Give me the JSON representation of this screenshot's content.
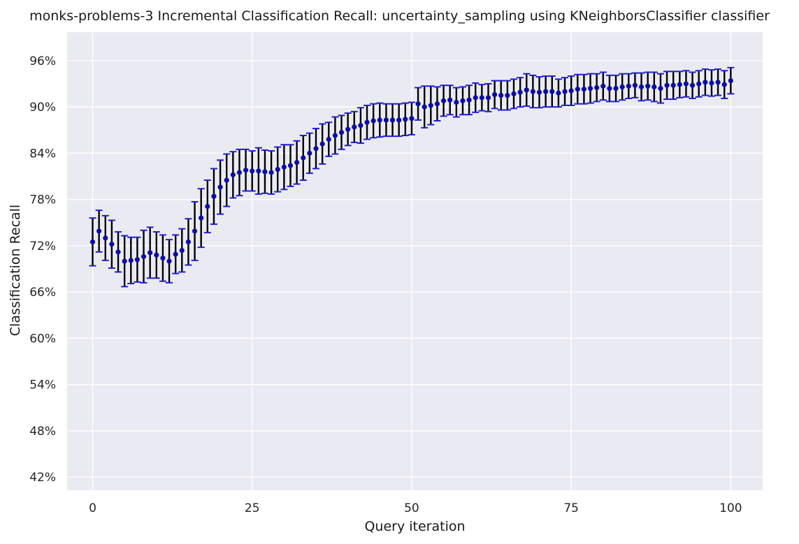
{
  "chart_data": {
    "type": "scatter",
    "title": "monks-problems-3 Incremental Classification Recall: uncertainty_sampling using KNeighborsClassifier classifier",
    "xlabel": "Query iteration",
    "ylabel": "Classification Recall",
    "xlim": [
      -4,
      105
    ],
    "ylim": [
      40.3,
      99.7
    ],
    "xticks": [
      0,
      25,
      50,
      75,
      100
    ],
    "yticks": [
      42,
      48,
      54,
      60,
      66,
      72,
      78,
      84,
      90,
      96
    ],
    "ytick_format": "percent",
    "grid": true,
    "background": "#eaeaf2",
    "grid_color": "#ffffff",
    "point_color": "#0c0ca4",
    "errorbar_color": "#000000",
    "cap_color": "#1f1fcf",
    "series": [
      {
        "x": [
          0,
          1,
          2,
          3,
          4,
          5,
          6,
          7,
          8,
          9,
          10,
          11,
          12,
          13,
          14,
          15,
          16,
          17,
          18,
          19,
          20,
          21,
          22,
          23,
          24,
          25,
          26,
          27,
          28,
          29,
          30,
          31,
          32,
          33,
          34,
          35,
          36,
          37,
          38,
          39,
          40,
          41,
          42,
          43,
          44,
          45,
          46,
          47,
          48,
          49,
          50,
          51,
          52,
          53,
          54,
          55,
          56,
          57,
          58,
          59,
          60,
          61,
          62,
          63,
          64,
          65,
          66,
          67,
          68,
          69,
          70,
          71,
          72,
          73,
          74,
          75,
          76,
          77,
          78,
          79,
          80,
          81,
          82,
          83,
          84,
          85,
          86,
          87,
          88,
          89,
          90,
          91,
          92,
          93,
          94,
          95,
          96,
          97,
          98,
          99,
          100
        ],
        "y": [
          72.5,
          73.9,
          73.0,
          72.2,
          71.2,
          70.0,
          70.1,
          70.2,
          70.6,
          71.1,
          70.8,
          70.4,
          70.0,
          70.9,
          71.4,
          72.5,
          73.9,
          75.6,
          77.1,
          78.4,
          79.6,
          80.5,
          81.2,
          81.5,
          81.8,
          81.7,
          81.7,
          81.6,
          81.5,
          81.9,
          82.2,
          82.4,
          82.8,
          83.4,
          84.0,
          84.6,
          85.2,
          85.8,
          86.3,
          86.7,
          87.1,
          87.4,
          87.6,
          88.0,
          88.2,
          88.3,
          88.3,
          88.3,
          88.3,
          88.4,
          88.5,
          90.4,
          90.0,
          90.2,
          90.4,
          90.8,
          90.9,
          90.6,
          90.8,
          90.9,
          91.2,
          91.2,
          91.2,
          91.6,
          91.5,
          91.5,
          91.7,
          91.9,
          92.2,
          92.0,
          91.9,
          92.0,
          92.0,
          91.8,
          92.0,
          92.1,
          92.3,
          92.3,
          92.4,
          92.5,
          92.7,
          92.4,
          92.4,
          92.6,
          92.7,
          92.8,
          92.6,
          92.7,
          92.6,
          92.4,
          92.8,
          92.8,
          92.9,
          93.0,
          92.8,
          93.0,
          93.2,
          93.1,
          93.2,
          92.9,
          93.4
        ],
        "err": [
          3.1,
          2.7,
          2.9,
          3.1,
          2.6,
          3.3,
          3.0,
          2.9,
          3.4,
          3.3,
          3.0,
          3.0,
          2.8,
          2.5,
          2.8,
          3.0,
          3.8,
          3.8,
          3.4,
          3.6,
          3.5,
          3.4,
          3.0,
          3.0,
          2.7,
          2.6,
          3.0,
          2.8,
          2.8,
          2.9,
          2.9,
          2.7,
          2.8,
          2.9,
          2.6,
          2.6,
          2.6,
          2.2,
          2.4,
          2.2,
          2.1,
          2.0,
          2.3,
          2.2,
          2.2,
          2.2,
          2.1,
          2.1,
          2.1,
          2.1,
          2.1,
          2.1,
          2.7,
          2.5,
          2.2,
          2.0,
          1.9,
          1.9,
          1.8,
          1.9,
          1.9,
          1.7,
          1.8,
          1.8,
          1.9,
          1.9,
          1.9,
          1.9,
          2.1,
          2.1,
          2.0,
          2.0,
          2.0,
          1.8,
          1.8,
          1.9,
          1.9,
          1.9,
          1.9,
          1.8,
          1.8,
          1.7,
          1.7,
          1.7,
          1.6,
          1.6,
          1.8,
          1.8,
          1.9,
          1.9,
          1.8,
          1.8,
          1.7,
          1.7,
          1.7,
          1.7,
          1.7,
          1.7,
          1.7,
          1.8,
          1.7
        ]
      }
    ]
  }
}
